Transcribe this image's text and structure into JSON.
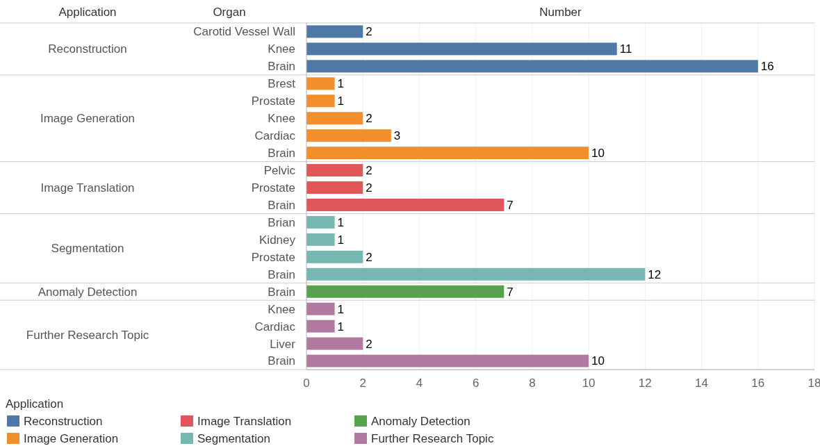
{
  "chart_data": {
    "type": "bar",
    "orientation": "horizontal",
    "xlabel": "Number",
    "ylabel": "Organ",
    "legend_title": "Application",
    "categories": [
      "Carotid Vessel Wall",
      "Knee",
      "Brain",
      "Brest",
      "Prostate",
      "Knee",
      "Cardiac",
      "Brain",
      "Pelvic",
      "Prostate",
      "Brain",
      "Brian",
      "Kidney",
      "Prostate",
      "Brain",
      "Brain",
      "Knee",
      "Cardiac",
      "Liver",
      "Brain"
    ],
    "series": [
      {
        "name": "Reconstruction",
        "color": "#4e79a7",
        "values": [
          2,
          11,
          16,
          null,
          null,
          null,
          null,
          null,
          null,
          null,
          null,
          null,
          null,
          null,
          null,
          null,
          null,
          null,
          null,
          null
        ]
      },
      {
        "name": "Image Generation",
        "color": "#f28e2b",
        "values": [
          null,
          null,
          null,
          1,
          1,
          2,
          3,
          10,
          null,
          null,
          null,
          null,
          null,
          null,
          null,
          null,
          null,
          null,
          null,
          null
        ]
      },
      {
        "name": "Image Translation",
        "color": "#e15759",
        "values": [
          null,
          null,
          null,
          null,
          null,
          null,
          null,
          null,
          2,
          2,
          7,
          null,
          null,
          null,
          null,
          null,
          null,
          null,
          null,
          null
        ]
      },
      {
        "name": "Segmentation",
        "color": "#76b7b2",
        "values": [
          null,
          null,
          null,
          null,
          null,
          null,
          null,
          null,
          null,
          null,
          null,
          1,
          1,
          2,
          12,
          null,
          null,
          null,
          null,
          null
        ]
      },
      {
        "name": "Anomaly Detection",
        "color": "#59a14f",
        "values": [
          null,
          null,
          null,
          null,
          null,
          null,
          null,
          null,
          null,
          null,
          null,
          null,
          null,
          null,
          null,
          7,
          null,
          null,
          null,
          null
        ]
      },
      {
        "name": "Further Research Topic",
        "color": "#b07aa1",
        "values": [
          null,
          null,
          null,
          null,
          null,
          null,
          null,
          null,
          null,
          null,
          null,
          null,
          null,
          null,
          null,
          null,
          1,
          1,
          2,
          10
        ]
      }
    ],
    "xlim": [
      0,
      18
    ],
    "xticks": [
      0,
      2,
      4,
      6,
      8,
      10,
      12,
      14,
      16,
      18
    ],
    "grid": "x",
    "data_labels": true,
    "legend": "bottom"
  }
}
